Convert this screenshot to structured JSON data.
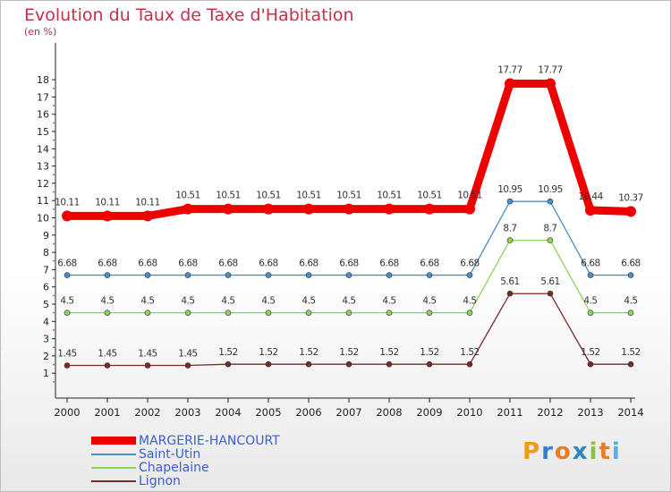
{
  "title": "Evolution du Taux de Taxe d'Habitation",
  "unit": "(en %)",
  "brand": {
    "logo_text": "Proxiti",
    "letters": [
      {
        "ch": "P",
        "color": "#f39c12"
      },
      {
        "ch": "r",
        "color": "#3a7bd5"
      },
      {
        "ch": "o",
        "color": "#e67e22"
      },
      {
        "ch": "x",
        "color": "#2e86c1"
      },
      {
        "ch": "i",
        "color": "#8bc34a"
      },
      {
        "ch": "t",
        "color": "#e67e22"
      },
      {
        "ch": "i",
        "color": "#5dade2"
      }
    ]
  },
  "chart_data": {
    "type": "line",
    "x": [
      "2000",
      "2001",
      "2002",
      "2003",
      "2004",
      "2005",
      "2006",
      "2007",
      "2008",
      "2009",
      "2010",
      "2011",
      "2012",
      "2013",
      "2014"
    ],
    "ylim": [
      0,
      18
    ],
    "yticks": [
      "1",
      "2",
      "3",
      "4",
      "5",
      "6",
      "7",
      "8",
      "9",
      "10",
      "11",
      "12",
      "13",
      "14",
      "15",
      "16",
      "17",
      "18"
    ],
    "grid": false,
    "legend_position": "bottom-left",
    "series": [
      {
        "name": "MARGERIE-HANCOURT",
        "color": "#ee0000",
        "values": [
          10.11,
          10.11,
          10.11,
          10.51,
          10.51,
          10.51,
          10.51,
          10.51,
          10.51,
          10.51,
          10.51,
          17.77,
          17.77,
          10.44,
          10.37
        ],
        "labels": [
          "10.11",
          "10.11",
          "10.11",
          "10.51",
          "10.51",
          "10.51",
          "10.51",
          "10.51",
          "10.51",
          "10.51",
          "10.51",
          "17.77",
          "17.77",
          "10.44",
          "10.37"
        ]
      },
      {
        "name": "Saint-Utin",
        "color": "#4a8fc9",
        "values": [
          6.68,
          6.68,
          6.68,
          6.68,
          6.68,
          6.68,
          6.68,
          6.68,
          6.68,
          6.68,
          6.68,
          10.95,
          10.95,
          6.68,
          6.68
        ],
        "labels": [
          "6.68",
          "6.68",
          "6.68",
          "6.68",
          "6.68",
          "6.68",
          "6.68",
          "6.68",
          "6.68",
          "6.68",
          "6.68",
          "10.95",
          "10.95",
          "6.68",
          "6.68"
        ]
      },
      {
        "name": "Chapelaine",
        "color": "#8fd45a",
        "values": [
          4.5,
          4.5,
          4.5,
          4.5,
          4.5,
          4.5,
          4.5,
          4.5,
          4.5,
          4.5,
          4.5,
          8.7,
          8.7,
          4.5,
          4.5
        ],
        "labels": [
          "4.5",
          "4.5",
          "4.5",
          "4.5",
          "4.5",
          "4.5",
          "4.5",
          "4.5",
          "4.5",
          "4.5",
          "4.5",
          "8.7",
          "8.7",
          "4.5",
          "4.5"
        ]
      },
      {
        "name": "Lignon",
        "color": "#7a2a2a",
        "values": [
          1.45,
          1.45,
          1.45,
          1.45,
          1.52,
          1.52,
          1.52,
          1.52,
          1.52,
          1.52,
          1.52,
          5.61,
          5.61,
          1.52,
          1.52
        ],
        "labels": [
          "1.45",
          "1.45",
          "1.45",
          "1.45",
          "1.52",
          "1.52",
          "1.52",
          "1.52",
          "1.52",
          "1.52",
          "1.52",
          "5.61",
          "5.61",
          "1.52",
          "1.52"
        ]
      }
    ]
  }
}
